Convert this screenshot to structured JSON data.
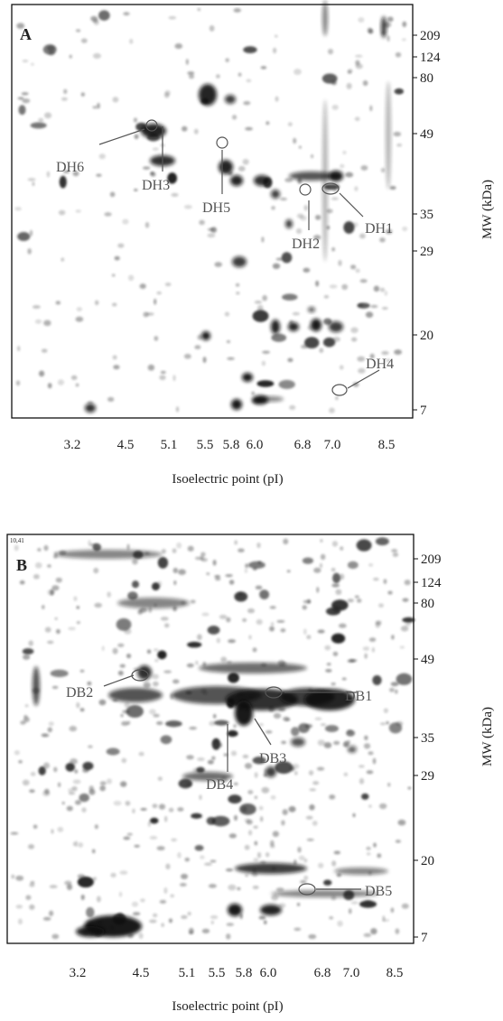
{
  "panels": [
    {
      "label": "A",
      "x_ticks": [
        "3.2",
        "4.5",
        "5.1",
        "5.5",
        "5.8",
        "6.0",
        "6.8",
        "7.0",
        "8.5"
      ],
      "y_ticks": [
        "209",
        "124",
        "80",
        "49",
        "35",
        "29",
        "20",
        "7"
      ],
      "x_title": "Isoelectric point (pI)",
      "y_title": "MW (kDa)",
      "annotations": [
        "DH6",
        "DH3",
        "DH5",
        "DH2",
        "DH1",
        "DH4"
      ]
    },
    {
      "label": "B",
      "corner_text": "10,41",
      "x_ticks": [
        "3.2",
        "4.5",
        "5.1",
        "5.5",
        "5.8",
        "6.0",
        "6.8",
        "7.0",
        "8.5"
      ],
      "y_ticks": [
        "209",
        "124",
        "80",
        "49",
        "35",
        "29",
        "20",
        "7"
      ],
      "x_title": "Isoelectric point (pI)",
      "y_title": "MW (kDa)",
      "annotations": [
        "DB2",
        "DB1",
        "DB3",
        "DB4",
        "DB5"
      ]
    }
  ]
}
